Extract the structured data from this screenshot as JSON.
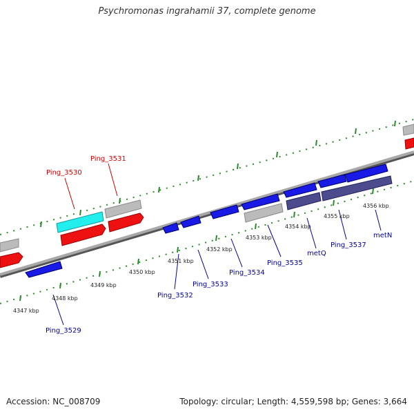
{
  "title": "Psychromonas ingrahamii 37, complete genome",
  "footer": {
    "accession": "Accession: NC_008709",
    "stats": "Topology: circular; Length: 4,559,598 bp; Genes: 3,664"
  },
  "colors": {
    "forward_red": "#ee1111",
    "reverse_blue": "#1a1ae6",
    "cyan": "#22eeee",
    "gray": "#bbbbbb",
    "slate": "#4b4b8e",
    "backbone": "#808080",
    "tick_green": "#2a8a2a",
    "label_red": "#cc0000",
    "label_blue": "#000099"
  },
  "kbp_labels": [
    "4347 kbp",
    "4348 kbp",
    "4349 kbp",
    "4350 kbp",
    "4351 kbp",
    "4352 kbp",
    "4353 kbp",
    "4354 kbp",
    "4355 kbp",
    "4356 kbp"
  ],
  "gene_labels_upper": [
    "Ping_3530",
    "Ping_3531"
  ],
  "gene_labels_lower": [
    "Ping_3529",
    "Ping_3532",
    "Ping_3533",
    "Ping_3534",
    "Ping_3535",
    "metQ",
    "Ping_3537",
    "metN"
  ]
}
